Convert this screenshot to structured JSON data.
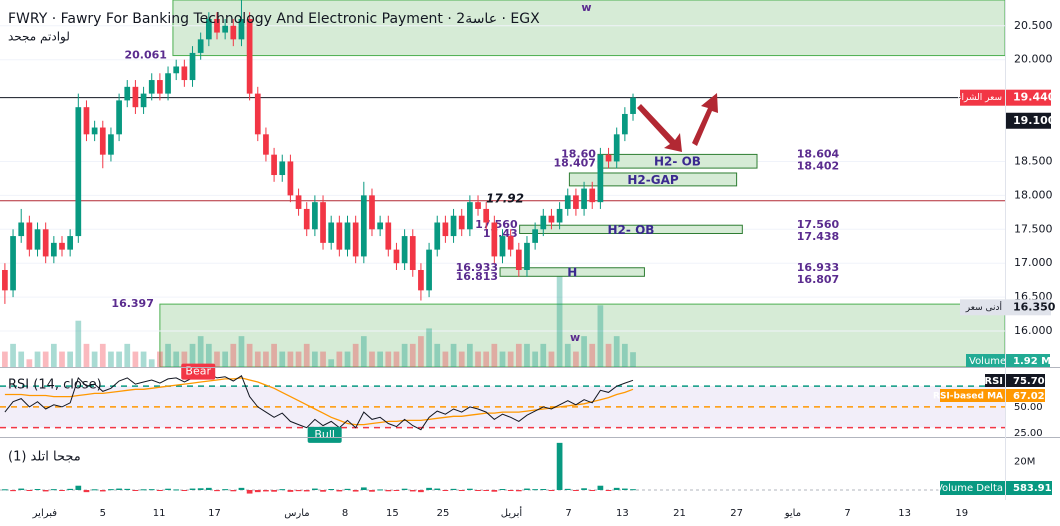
{
  "header": {
    "title": "FWRY · Fawry For Banking Technology And Electronic Payment · 2عاسة · EGX",
    "subtitle": "لوادتم مجحد"
  },
  "chart_data": {
    "type": "candlestick",
    "up_color": "#089981",
    "down_color": "#f23645",
    "ohlc": [
      [
        16.9,
        17.0,
        16.4,
        16.6
      ],
      [
        16.6,
        17.5,
        16.5,
        17.4
      ],
      [
        17.4,
        17.8,
        17.3,
        17.6
      ],
      [
        17.6,
        17.7,
        17.1,
        17.2
      ],
      [
        17.2,
        17.6,
        17.1,
        17.5
      ],
      [
        17.5,
        17.6,
        17.0,
        17.1
      ],
      [
        17.1,
        17.4,
        17.0,
        17.3
      ],
      [
        17.3,
        17.4,
        17.1,
        17.2
      ],
      [
        17.2,
        17.5,
        17.1,
        17.4
      ],
      [
        17.4,
        19.5,
        17.3,
        19.3
      ],
      [
        19.3,
        19.4,
        18.8,
        18.9
      ],
      [
        18.9,
        19.1,
        18.8,
        19.0
      ],
      [
        19.0,
        19.1,
        18.4,
        18.6
      ],
      [
        18.6,
        19.0,
        18.5,
        18.9
      ],
      [
        18.9,
        19.5,
        18.8,
        19.4
      ],
      [
        19.4,
        19.7,
        19.3,
        19.6
      ],
      [
        19.6,
        19.7,
        19.2,
        19.3
      ],
      [
        19.3,
        19.6,
        19.2,
        19.5
      ],
      [
        19.5,
        19.8,
        19.4,
        19.7
      ],
      [
        19.7,
        19.8,
        19.4,
        19.5
      ],
      [
        19.5,
        19.9,
        19.4,
        19.8
      ],
      [
        19.8,
        20.0,
        19.7,
        19.9
      ],
      [
        19.9,
        20.0,
        19.6,
        19.7
      ],
      [
        19.7,
        20.2,
        19.6,
        20.1
      ],
      [
        20.1,
        20.4,
        20.0,
        20.3
      ],
      [
        20.3,
        20.7,
        20.2,
        20.6
      ],
      [
        20.6,
        20.7,
        20.3,
        20.4
      ],
      [
        20.4,
        20.6,
        20.3,
        20.5
      ],
      [
        20.5,
        20.6,
        20.2,
        20.3
      ],
      [
        20.3,
        20.9,
        20.2,
        20.6
      ],
      [
        20.6,
        20.7,
        19.4,
        19.5
      ],
      [
        19.5,
        19.6,
        18.8,
        18.9
      ],
      [
        18.9,
        19.0,
        18.5,
        18.6
      ],
      [
        18.6,
        18.7,
        18.2,
        18.3
      ],
      [
        18.3,
        18.6,
        18.2,
        18.5
      ],
      [
        18.5,
        18.6,
        17.9,
        18.0
      ],
      [
        18.0,
        18.1,
        17.7,
        17.8
      ],
      [
        17.8,
        17.9,
        17.4,
        17.5
      ],
      [
        17.5,
        18.0,
        17.4,
        17.9
      ],
      [
        17.9,
        18.0,
        17.2,
        17.3
      ],
      [
        17.3,
        17.7,
        17.2,
        17.6
      ],
      [
        17.6,
        17.7,
        17.1,
        17.2
      ],
      [
        17.2,
        17.7,
        17.1,
        17.6
      ],
      [
        17.6,
        17.7,
        17.0,
        17.1
      ],
      [
        17.1,
        18.2,
        17.0,
        18.0
      ],
      [
        18.0,
        18.1,
        17.4,
        17.5
      ],
      [
        17.5,
        17.7,
        17.4,
        17.6
      ],
      [
        17.6,
        17.7,
        17.1,
        17.2
      ],
      [
        17.2,
        17.3,
        16.9,
        17.0
      ],
      [
        17.0,
        17.5,
        16.9,
        17.4
      ],
      [
        17.4,
        17.5,
        16.8,
        16.9
      ],
      [
        16.9,
        17.0,
        16.45,
        16.6
      ],
      [
        16.6,
        17.3,
        16.5,
        17.2
      ],
      [
        17.2,
        17.7,
        17.1,
        17.6
      ],
      [
        17.6,
        17.7,
        17.3,
        17.4
      ],
      [
        17.4,
        17.8,
        17.3,
        17.7
      ],
      [
        17.7,
        17.8,
        17.4,
        17.5
      ],
      [
        17.5,
        18.0,
        17.4,
        17.9
      ],
      [
        17.9,
        18.0,
        17.7,
        17.8
      ],
      [
        17.8,
        17.9,
        17.5,
        17.6
      ],
      [
        17.6,
        17.7,
        17.0,
        17.1
      ],
      [
        17.1,
        17.5,
        17.0,
        17.4
      ],
      [
        17.4,
        17.5,
        17.1,
        17.2
      ],
      [
        17.2,
        17.3,
        16.8,
        16.9
      ],
      [
        16.9,
        17.4,
        16.8,
        17.3
      ],
      [
        17.3,
        17.6,
        17.2,
        17.5
      ],
      [
        17.5,
        17.8,
        17.4,
        17.7
      ],
      [
        17.7,
        17.8,
        17.5,
        17.6
      ],
      [
        17.6,
        17.9,
        17.5,
        17.8
      ],
      [
        17.8,
        18.1,
        17.7,
        18.0
      ],
      [
        18.0,
        18.1,
        17.7,
        17.8
      ],
      [
        17.8,
        18.2,
        17.7,
        18.1
      ],
      [
        18.1,
        18.2,
        17.8,
        17.9
      ],
      [
        17.9,
        18.7,
        17.8,
        18.6
      ],
      [
        18.6,
        18.7,
        18.4,
        18.5
      ],
      [
        18.5,
        19.0,
        18.4,
        18.9
      ],
      [
        18.9,
        19.3,
        18.8,
        19.2
      ],
      [
        19.2,
        19.5,
        19.1,
        19.44
      ]
    ],
    "xlim": [
      -0.6,
      122.6
    ],
    "xticks": [
      {
        "value": 4.9,
        "label": "فبراير"
      },
      {
        "value": 12.0,
        "label": "5"
      },
      {
        "value": 18.9,
        "label": "11"
      },
      {
        "value": 25.7,
        "label": "17"
      },
      {
        "value": 35.8,
        "label": "مارس"
      },
      {
        "value": 41.7,
        "label": "8"
      },
      {
        "value": 47.5,
        "label": "15"
      },
      {
        "value": 53.7,
        "label": "25"
      },
      {
        "value": 62.1,
        "label": "أبريل"
      },
      {
        "value": 69.1,
        "label": "7"
      },
      {
        "value": 75.7,
        "label": "13"
      },
      {
        "value": 82.7,
        "label": "21"
      },
      {
        "value": 89.7,
        "label": "27"
      },
      {
        "value": 96.6,
        "label": "مايو"
      },
      {
        "value": 103.3,
        "label": "7"
      },
      {
        "value": 110.3,
        "label": "13"
      },
      {
        "value": 117.3,
        "label": "19"
      }
    ],
    "ylim": [
      15.47,
      20.88
    ],
    "yticks": [
      {
        "value": 20.5,
        "label": "20.500"
      },
      {
        "value": 20.0,
        "label": "20.000"
      },
      {
        "value": 18.5,
        "label": "18.500"
      },
      {
        "value": 18.0,
        "label": "18.000"
      },
      {
        "value": 17.5,
        "label": "17.500"
      },
      {
        "value": 17.0,
        "label": "17.000"
      },
      {
        "value": 16.5,
        "label": "16.500"
      },
      {
        "value": 16.0,
        "label": "16.000"
      }
    ],
    "big_zones": [
      {
        "bottom": 20.061,
        "x0": 20.6,
        "label": "20.061"
      },
      {
        "top": 16.397,
        "x0": 19.0,
        "label": "16.397"
      }
    ],
    "zones": [
      {
        "label": "H2- OB",
        "top": 18.604,
        "bottom": 18.402,
        "x0": 72.7,
        "x1": 92.2,
        "left_labels": [
          "18.60",
          "18.407"
        ],
        "right_labels": [
          "18.604",
          "18.402"
        ]
      },
      {
        "label": "H2-GAP",
        "top": 18.33,
        "bottom": 18.14,
        "x0": 69.2,
        "x1": 89.7
      },
      {
        "label": "H2- OB",
        "top": 17.56,
        "bottom": 17.438,
        "x0": 63.1,
        "x1": 90.4,
        "left_labels": [
          "17.560",
          "17.43"
        ],
        "right_labels": [
          "17.560",
          "17.438"
        ]
      },
      {
        "label": "H",
        "top": 16.933,
        "bottom": 16.807,
        "x0": 60.7,
        "x1": 78.4,
        "left_labels": [
          "16.933",
          "16.813"
        ],
        "right_labels": [
          "16.933",
          "16.807"
        ]
      }
    ],
    "levels": [
      {
        "value": 17.92,
        "label": "17.92",
        "color": "#b22833"
      },
      {
        "value": 19.44,
        "color": "#131722"
      }
    ],
    "markers": [
      {
        "text": "w",
        "x": 71.3,
        "y": 20.76
      },
      {
        "text": "w",
        "x": 69.9,
        "y": 15.9
      }
    ],
    "price_tags": [
      {
        "value": 19.44,
        "label": "19.440",
        "note": "سعر الشراء",
        "color": "#f23645"
      },
      {
        "value": 19.1,
        "label": "19.100",
        "color": "#131722"
      },
      {
        "value": 16.35,
        "label": "16.350",
        "note": "أدنى سعر",
        "color": "#e0e3eb"
      }
    ],
    "volume": {
      "name": "Volume",
      "label": "1.92 M",
      "ylim": [
        0,
        14
      ],
      "values": [
        2,
        3,
        2,
        1,
        2,
        2,
        3,
        2,
        2,
        6,
        3,
        2,
        3,
        2,
        2,
        3,
        2,
        2,
        1,
        2,
        3,
        2,
        2,
        3,
        4,
        3,
        2,
        2,
        3,
        4,
        3,
        2,
        2,
        3,
        2,
        2,
        2,
        3,
        2,
        2,
        1,
        2,
        2,
        3,
        4,
        2,
        2,
        2,
        2,
        3,
        3,
        4,
        5,
        3,
        2,
        3,
        2,
        3,
        2,
        2,
        3,
        2,
        2,
        3,
        3,
        2,
        3,
        2,
        12,
        3,
        2,
        4,
        3,
        8,
        3,
        4,
        3,
        1.92
      ]
    },
    "rsi": {
      "title": "RSI (14, close)",
      "name": "RSI",
      "label": "75.70",
      "color": "#131722",
      "ylim": [
        21,
        85.6
      ],
      "yticks": [
        {
          "value": 50,
          "label": "50.00"
        },
        {
          "value": 25,
          "label": "25.00"
        }
      ],
      "bands": [
        {
          "value": 70,
          "color": "#089981"
        },
        {
          "value": 50,
          "color": "#ff9800"
        },
        {
          "value": 30,
          "color": "#f23645"
        }
      ],
      "values": [
        45,
        55,
        58,
        50,
        55,
        48,
        52,
        50,
        54,
        78,
        70,
        72,
        65,
        68,
        75,
        78,
        72,
        74,
        76,
        73,
        77,
        78,
        74,
        78,
        80,
        82,
        78,
        79,
        75,
        80,
        60,
        50,
        45,
        40,
        44,
        36,
        33,
        30,
        38,
        32,
        36,
        30,
        37,
        30,
        45,
        38,
        40,
        34,
        31,
        38,
        32,
        28,
        40,
        46,
        43,
        48,
        45,
        50,
        48,
        45,
        38,
        43,
        40,
        36,
        42,
        46,
        50,
        48,
        52,
        56,
        52,
        57,
        54,
        66,
        64,
        70,
        73,
        75.7
      ],
      "ma": {
        "name": "RSI-based MA",
        "label": "67.02",
        "color": "#ff9800",
        "values": [
          62,
          62,
          62,
          61,
          61,
          61,
          60,
          60,
          60,
          61,
          62,
          63,
          63,
          64,
          65,
          66,
          67,
          67,
          68,
          69,
          70,
          71,
          72,
          73,
          74,
          75,
          76,
          77,
          77,
          78,
          76,
          74,
          71,
          68,
          64,
          60,
          56,
          52,
          48,
          44,
          40,
          37,
          34,
          33,
          33,
          34,
          35,
          36,
          36,
          37,
          37,
          37,
          38,
          39,
          40,
          41,
          41,
          42,
          43,
          44,
          44,
          45,
          45,
          45,
          46,
          47,
          48,
          49,
          50,
          51,
          52,
          53,
          55,
          57,
          59,
          62,
          64,
          67.02
        ]
      },
      "signals": [
        {
          "text": "Bear",
          "x": 23.7,
          "y": 84,
          "color": "#f23645"
        },
        {
          "text": "Bull",
          "x": 39.2,
          "y": 23,
          "color": "#089981"
        }
      ]
    },
    "delta": {
      "title": "(1) مجحا اتلد",
      "name": "Volume Delta",
      "label": "583.91 K",
      "ylim": [
        -7,
        35
      ],
      "yticks": [
        {
          "value": 20,
          "label": "20M"
        }
      ],
      "values": [
        0.5,
        -0.8,
        1,
        -0.5,
        0.7,
        -1,
        0.6,
        -0.4,
        0.8,
        3,
        -1.5,
        0.5,
        -1,
        0.6,
        1,
        0.8,
        -0.7,
        0.5,
        0.6,
        -0.5,
        0.9,
        0.4,
        -0.6,
        1,
        1.2,
        1.5,
        -0.8,
        0.6,
        -0.9,
        1.5,
        -2.5,
        -1.5,
        -1,
        -1.2,
        0.6,
        -1.3,
        -0.8,
        -1,
        1,
        -1.2,
        0.7,
        -1,
        0.8,
        -1.1,
        1.8,
        -1.2,
        0.4,
        -0.9,
        -0.7,
        0.9,
        -1,
        -1.5,
        1.5,
        1,
        -0.6,
        0.8,
        -0.5,
        0.9,
        -0.3,
        -0.6,
        -1.2,
        0.7,
        -0.5,
        -0.9,
        1,
        0.6,
        0.7,
        -0.4,
        33,
        0.8,
        -0.6,
        1.2,
        -0.7,
        3,
        -0.5,
        1.5,
        1,
        0.58391
      ]
    }
  }
}
